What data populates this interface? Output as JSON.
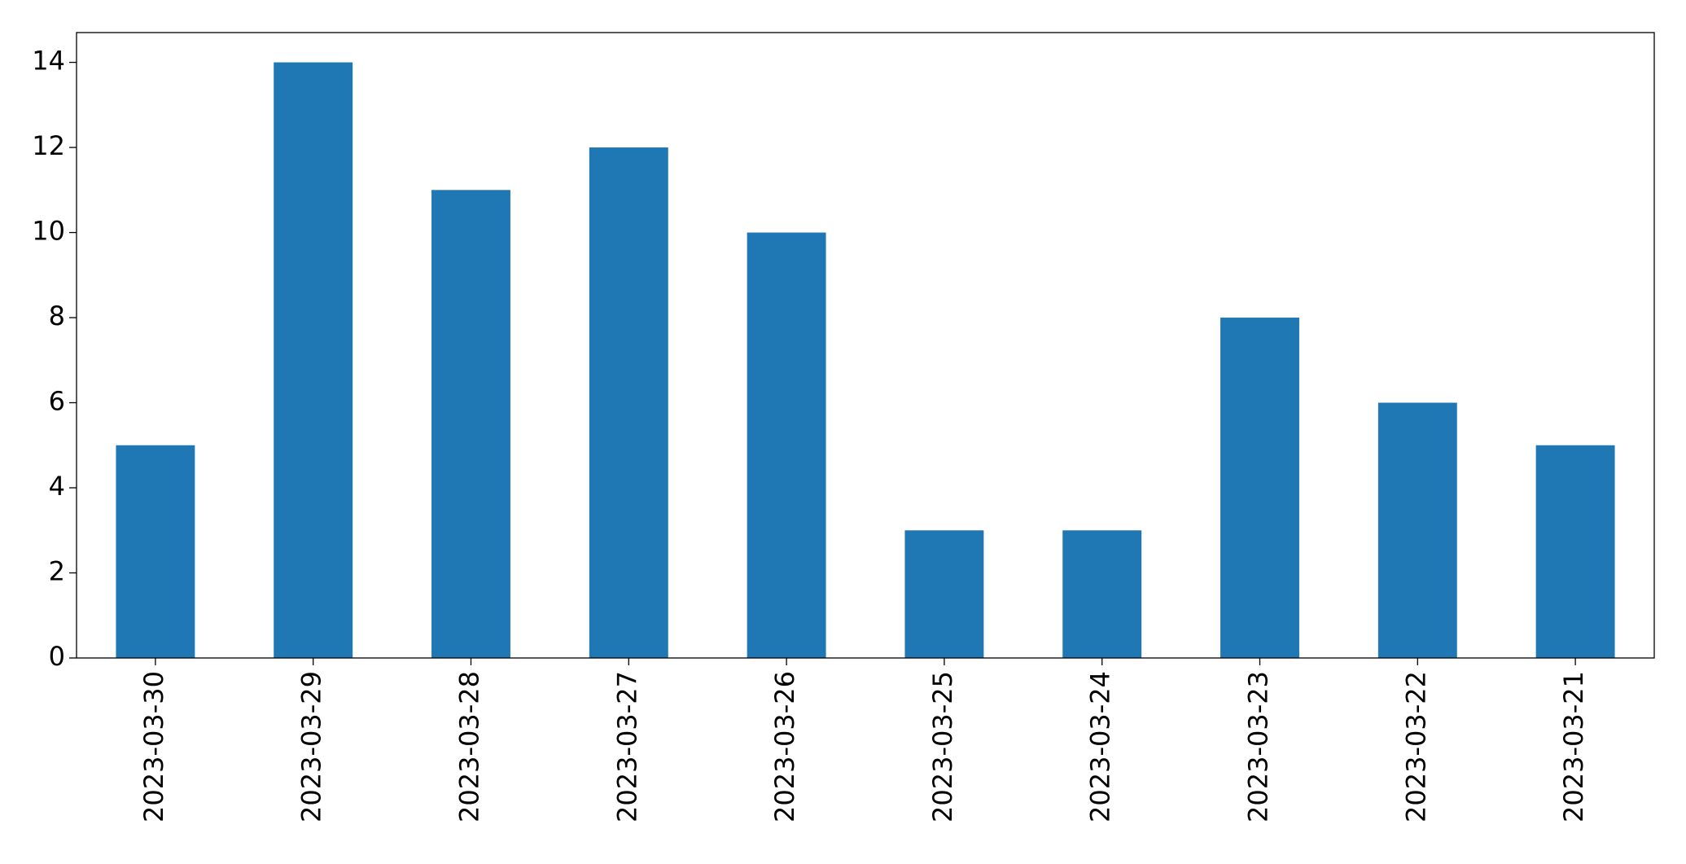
{
  "chart_data": {
    "type": "bar",
    "categories": [
      "2023-03-30",
      "2023-03-29",
      "2023-03-28",
      "2023-03-27",
      "2023-03-26",
      "2023-03-25",
      "2023-03-24",
      "2023-03-23",
      "2023-03-22",
      "2023-03-21"
    ],
    "values": [
      5,
      14,
      11,
      12,
      10,
      3,
      3,
      8,
      6,
      5
    ],
    "color": "#1f77b4",
    "ylim": [
      0,
      14.7
    ],
    "yticks": [
      0,
      2,
      4,
      6,
      8,
      10,
      12,
      14
    ],
    "grid": false
  }
}
